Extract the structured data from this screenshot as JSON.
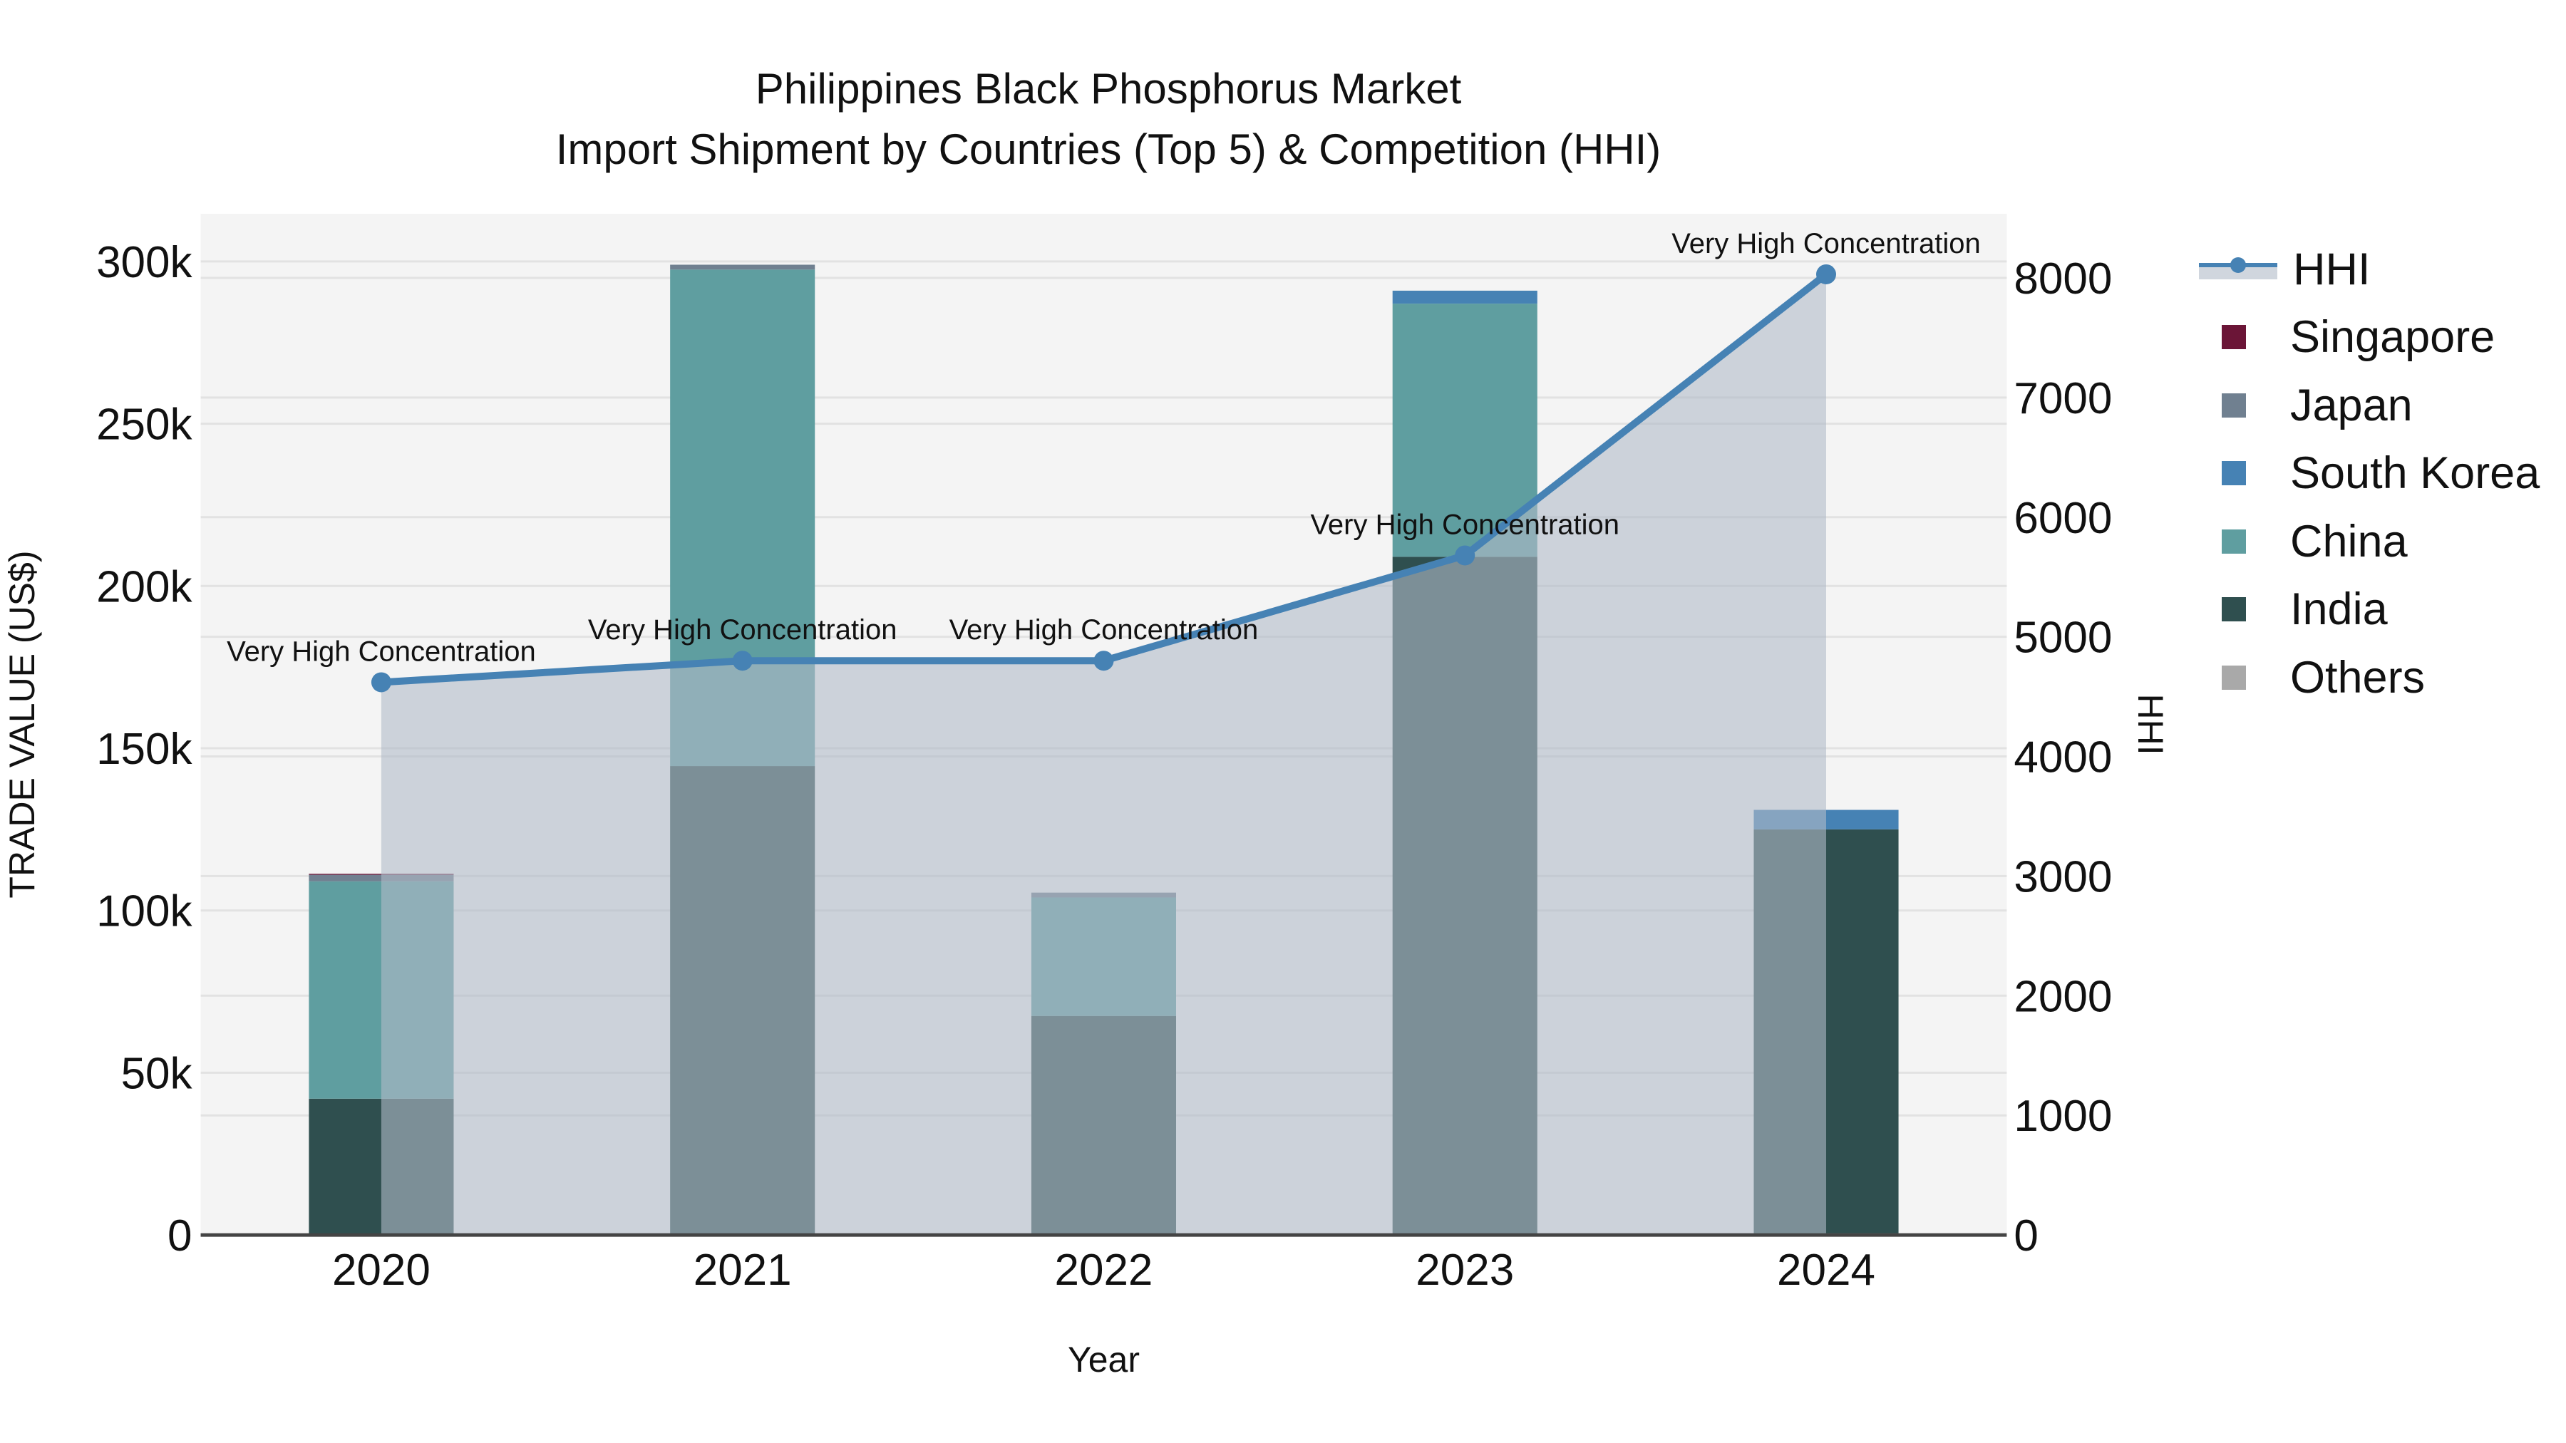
{
  "title": {
    "line1": "Philippines Black Phosphorus Market",
    "line2": "Import Shipment by Countries (Top 5) & Competition (HHI)"
  },
  "axes": {
    "x_label": "Year",
    "y_left_label": "TRADE VALUE (US$)",
    "y_right_label": "HHI",
    "y_left_ticks": [
      "0",
      "50k",
      "100k",
      "150k",
      "200k",
      "250k",
      "300k"
    ],
    "y_right_ticks": [
      "0",
      "1000",
      "2000",
      "3000",
      "4000",
      "5000",
      "6000",
      "7000",
      "8000"
    ]
  },
  "legend": [
    {
      "label": "HHI",
      "type": "line",
      "color": "#4682B4"
    },
    {
      "label": "Singapore",
      "type": "bar",
      "color": "#6B1537"
    },
    {
      "label": "Japan",
      "type": "bar",
      "color": "#708090"
    },
    {
      "label": "South Korea",
      "type": "bar",
      "color": "#4682B4"
    },
    {
      "label": "China",
      "type": "bar",
      "color": "#5F9EA0"
    },
    {
      "label": "India",
      "type": "bar",
      "color": "#2F4F4F"
    },
    {
      "label": "Others",
      "type": "bar",
      "color": "#A9A9A9"
    }
  ],
  "colors": {
    "plot_bg": "#F4F4F4",
    "grid": "#E2E2E2",
    "hhi_line": "#4682B4",
    "hhi_fill": "rgba(176,186,200,0.6)"
  },
  "chart_data": {
    "type": "bar",
    "stacked": true,
    "title": "Philippines Black Phosphorus Market — Import Shipment by Countries (Top 5) & Competition (HHI)",
    "xlabel": "Year",
    "ylabel": "TRADE VALUE (US$)",
    "y2label": "HHI",
    "ylim": [
      0,
      315000
    ],
    "y2lim": [
      0,
      8500
    ],
    "categories": [
      "2020",
      "2021",
      "2022",
      "2023",
      "2024"
    ],
    "series": [
      {
        "name": "Others",
        "color": "#A9A9A9",
        "values": [
          0,
          0,
          0,
          0,
          500
        ]
      },
      {
        "name": "India",
        "color": "#2F4F4F",
        "values": [
          42000,
          144500,
          67500,
          209000,
          124500
        ]
      },
      {
        "name": "China",
        "color": "#5F9EA0",
        "values": [
          67000,
          153000,
          36500,
          78000,
          0
        ]
      },
      {
        "name": "South Korea",
        "color": "#4682B4",
        "values": [
          0,
          0,
          0,
          4000,
          6000
        ]
      },
      {
        "name": "Japan",
        "color": "#708090",
        "values": [
          2000,
          1500,
          1500,
          0,
          0
        ]
      },
      {
        "name": "Singapore",
        "color": "#6B1537",
        "values": [
          300,
          0,
          0,
          0,
          0
        ]
      }
    ],
    "line_series": {
      "name": "HHI",
      "axis": "right",
      "color": "#4682B4",
      "values": [
        4620,
        4800,
        4800,
        5680,
        8030
      ],
      "annotations": [
        "Very High Concentration",
        "Very High Concentration",
        "Very High Concentration",
        "Very High Concentration",
        "Very High Concentration"
      ]
    },
    "grid": true,
    "legend_position": "right"
  }
}
